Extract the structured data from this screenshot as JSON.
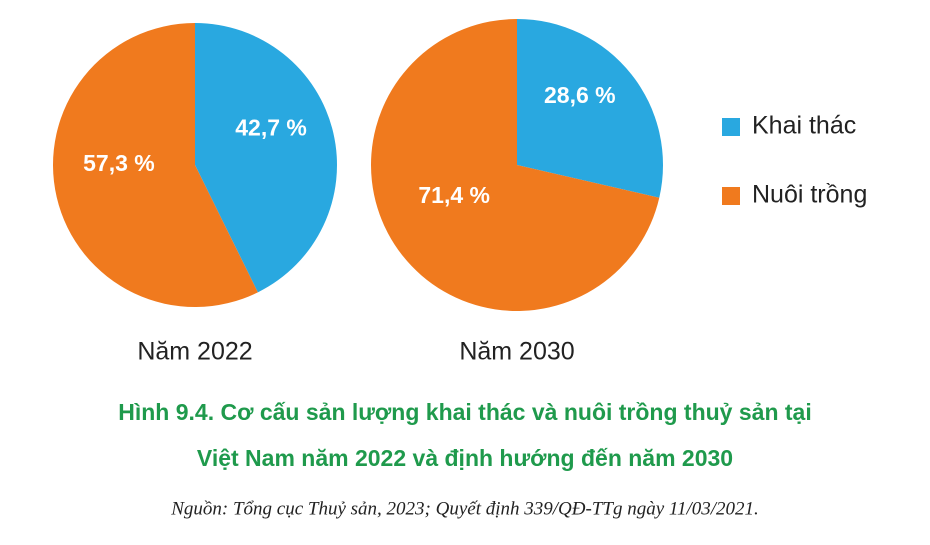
{
  "chart_data": [
    {
      "type": "pie",
      "title": "Năm 2022",
      "categories": [
        "Khai thác",
        "Nuôi trồng"
      ],
      "colors": [
        "#29a8e0",
        "#f07a1e"
      ],
      "values": [
        42.7,
        57.3
      ],
      "value_labels": [
        "42,7 %",
        "57,3 %"
      ]
    },
    {
      "type": "pie",
      "title": "Năm 2030",
      "categories": [
        "Khai thác",
        "Nuôi trồng"
      ],
      "colors": [
        "#29a8e0",
        "#f07a1e"
      ],
      "values": [
        28.6,
        71.4
      ],
      "value_labels": [
        "28,6 %",
        "71,4 %"
      ]
    }
  ],
  "caption": [
    "Hình 9.4. Cơ cấu sản lượng khai thác và nuôi trồng thuỷ sản tại",
    "Việt Nam năm 2022 và định hướng đến năm 2030"
  ],
  "source": "Nguồn: Tổng cục Thuỷ sản, 2023; Quyết định 339/QĐ-TTg ngày 11/03/2021."
}
